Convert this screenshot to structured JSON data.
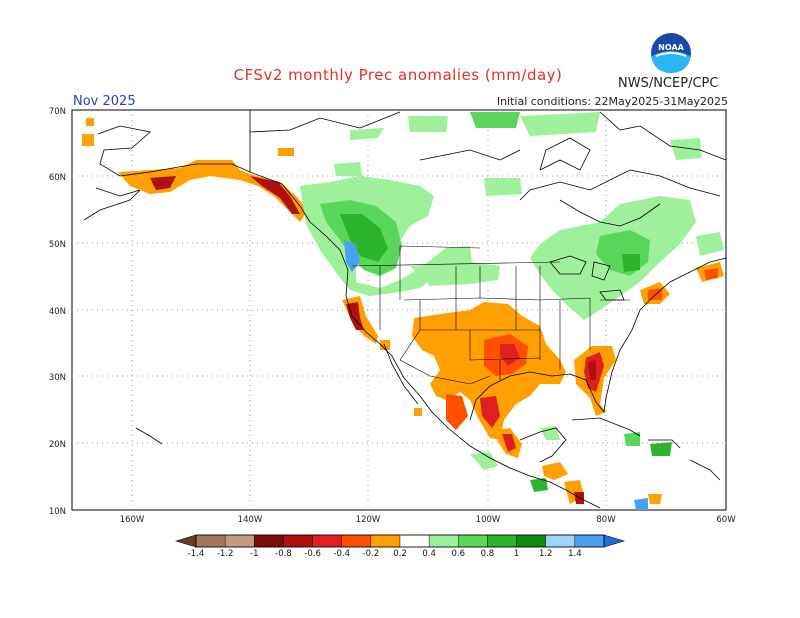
{
  "header": {
    "title": "CFSv2 monthly Prec anomalies (mm/day)",
    "agency": "NWS/NCEP/CPC",
    "logo_text": "NOAA",
    "month": "Nov 2025",
    "initial_conditions": "Initial conditions: 22May2025-31May2025"
  },
  "axes": {
    "lat_labels": [
      "70N",
      "60N",
      "50N",
      "40N",
      "30N",
      "20N",
      "10N"
    ],
    "lon_labels": [
      "160W",
      "140W",
      "120W",
      "100W",
      "80W",
      "60W"
    ]
  },
  "colorbar": {
    "ticks": [
      "-1.4",
      "-1.2",
      "-1",
      "-0.8",
      "-0.6",
      "-0.4",
      "-0.2",
      "0.2",
      "0.4",
      "0.6",
      "0.8",
      "1",
      "1.2",
      "1.4"
    ],
    "colors": [
      "#6b3a2a",
      "#a0785f",
      "#c49a84",
      "#7a0c0c",
      "#b01010",
      "#e02020",
      "#ff5000",
      "#ff9f00",
      "#ffffff",
      "#9ff09a",
      "#5ad75a",
      "#2db42d",
      "#118a11",
      "#9fd4ff",
      "#4aa0f0",
      "#1e6ee0"
    ]
  },
  "colors": {
    "dry_light": "#ff9f00",
    "dry_mid": "#ff5000",
    "dry_strong": "#e02020",
    "dry_extreme": "#b01010",
    "wet_light": "#9ff09a",
    "wet_mid": "#5ad75a",
    "wet_strong": "#2db42d",
    "wet_blue": "#4aa0f0"
  }
}
